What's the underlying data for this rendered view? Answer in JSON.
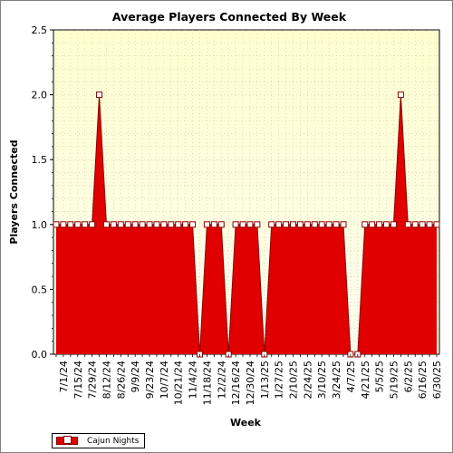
{
  "chart_data": {
    "type": "area",
    "title": "Average Players Connected By Week",
    "xlabel": "Week",
    "ylabel": "Players Connected",
    "ylim": [
      0,
      2.5
    ],
    "yticks": [
      "0.0",
      "0.5",
      "1.0",
      "1.5",
      "2.0",
      "2.5"
    ],
    "x_tick_labels": [
      "7/1/24",
      "7/15/24",
      "7/29/24",
      "8/12/24",
      "8/26/24",
      "9/9/24",
      "9/23/24",
      "10/7/24",
      "10/21/24",
      "11/4/24",
      "11/18/24",
      "12/2/24",
      "12/16/24",
      "12/30/24",
      "1/13/25",
      "1/27/25",
      "2/10/25",
      "2/24/25",
      "3/10/25",
      "3/24/25",
      "4/7/25",
      "4/21/25",
      "5/5/25",
      "5/19/25",
      "6/2/25",
      "6/16/25",
      "6/30/25"
    ],
    "x": [
      "6/24/24",
      "7/1/24",
      "7/8/24",
      "7/15/24",
      "7/22/24",
      "7/29/24",
      "8/5/24",
      "8/12/24",
      "8/19/24",
      "8/26/24",
      "9/2/24",
      "9/9/24",
      "9/16/24",
      "9/23/24",
      "9/30/24",
      "10/7/24",
      "10/14/24",
      "10/21/24",
      "10/28/24",
      "11/4/24",
      "11/11/24",
      "11/18/24",
      "11/25/24",
      "12/2/24",
      "12/9/24",
      "12/16/24",
      "12/23/24",
      "12/30/24",
      "1/6/25",
      "1/13/25",
      "1/20/25",
      "1/27/25",
      "2/3/25",
      "2/10/25",
      "2/17/25",
      "2/24/25",
      "3/3/25",
      "3/10/25",
      "3/17/25",
      "3/24/25",
      "3/31/25",
      "4/7/25",
      "4/14/25",
      "4/21/25",
      "4/28/25",
      "5/5/25",
      "5/12/25",
      "5/19/25",
      "5/26/25",
      "6/2/25",
      "6/9/25",
      "6/16/25",
      "6/23/25",
      "6/30/25"
    ],
    "grid": true,
    "legend": "bottom-left",
    "series": [
      {
        "name": "Cajun Nights",
        "color": "#e00000",
        "values": [
          1,
          1,
          1,
          1,
          1,
          1,
          2,
          1,
          1,
          1,
          1,
          1,
          1,
          1,
          1,
          1,
          1,
          1,
          1,
          1,
          0,
          1,
          1,
          1,
          0,
          1,
          1,
          1,
          1,
          0,
          1,
          1,
          1,
          1,
          1,
          1,
          1,
          1,
          1,
          1,
          1,
          0,
          0,
          1,
          1,
          1,
          1,
          1,
          2,
          1,
          1,
          1,
          1,
          1
        ]
      }
    ]
  }
}
